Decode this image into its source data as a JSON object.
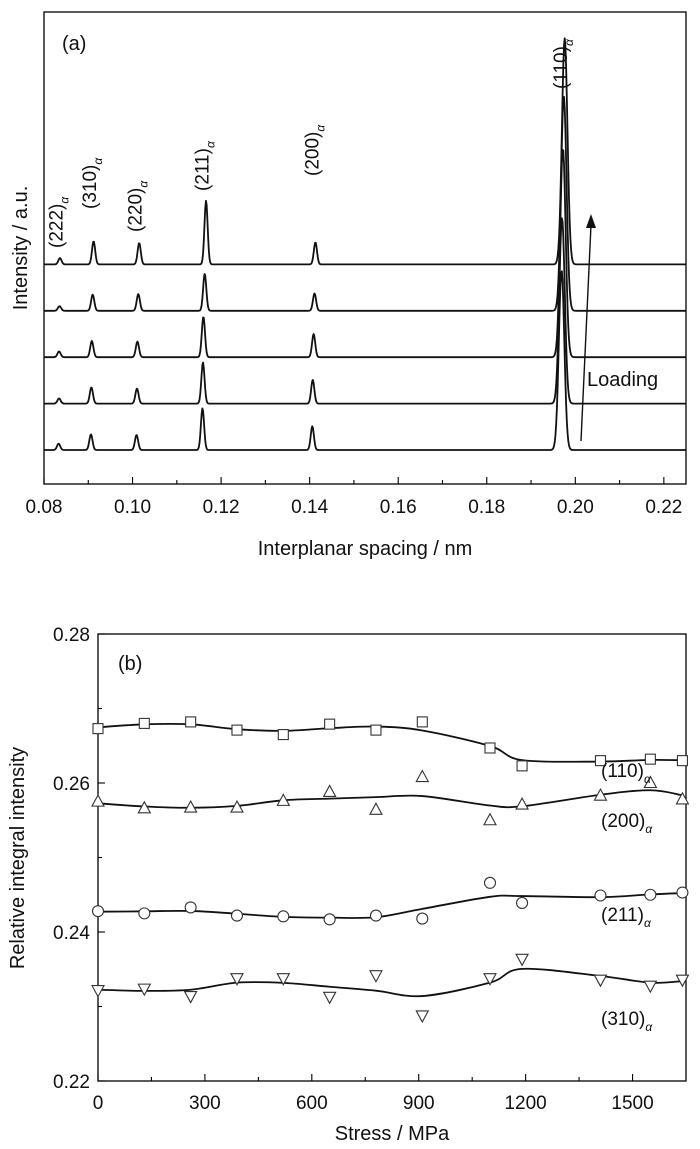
{
  "chart_data": [
    {
      "type": "line",
      "panel_label": "(a)",
      "xlabel": "Interplanar spacing / nm",
      "ylabel": "Intensity / a.u.",
      "xlim": [
        0.08,
        0.225
      ],
      "xticks": [
        "0.08",
        "0.10",
        "0.12",
        "0.14",
        "0.16",
        "0.18",
        "0.20",
        "0.22"
      ],
      "annotation": "Loading",
      "peaks": [
        {
          "label": "(222)",
          "subscript": "α",
          "d": 0.0833
        },
        {
          "label": "(310)",
          "subscript": "α",
          "d": 0.0908
        },
        {
          "label": "(220)",
          "subscript": "α",
          "d": 0.1011
        },
        {
          "label": "(211)",
          "subscript": "α",
          "d": 0.1163
        },
        {
          "label": "(200)",
          "subscript": "α",
          "d": 0.1411
        },
        {
          "label": "(110)",
          "subscript": "α",
          "d": 0.1972
        }
      ],
      "series": [
        {
          "name": "",
          "baseline": 0.0,
          "peak_d": [
            0.0833,
            0.0906,
            0.1009,
            0.1158,
            0.1406,
            0.1969
          ],
          "peak_h": [
            0.055,
            0.135,
            0.13,
            0.36,
            0.205,
            1.55
          ]
        },
        {
          "name": "",
          "baseline": 0.4,
          "peak_d": [
            0.0834,
            0.0907,
            0.101,
            0.1159,
            0.1407,
            0.197
          ],
          "peak_h": [
            0.045,
            0.14,
            0.13,
            0.355,
            0.205,
            1.6
          ]
        },
        {
          "name": "",
          "baseline": 0.8,
          "peak_d": [
            0.0834,
            0.0908,
            0.1011,
            0.116,
            0.1409,
            0.1972
          ],
          "peak_h": [
            0.05,
            0.14,
            0.135,
            0.35,
            0.2,
            1.8
          ]
        },
        {
          "name": "",
          "baseline": 1.2,
          "peak_d": [
            0.0835,
            0.091,
            0.1013,
            0.1163,
            0.1411,
            0.1974
          ],
          "peak_h": [
            0.04,
            0.14,
            0.145,
            0.32,
            0.15,
            1.85
          ]
        },
        {
          "name": "",
          "baseline": 1.6,
          "peak_d": [
            0.0836,
            0.0912,
            0.1015,
            0.1166,
            0.1413,
            0.1976
          ],
          "peak_h": [
            0.055,
            0.2,
            0.185,
            0.55,
            0.19,
            1.95
          ]
        }
      ]
    },
    {
      "type": "scatter",
      "panel_label": "(b)",
      "xlabel": "Stress / MPa",
      "ylabel": "Relative integral intensity",
      "xlim": [
        0,
        1650
      ],
      "ylim": [
        0.22,
        0.28
      ],
      "xticks": [
        "0",
        "300",
        "600",
        "900",
        "1200",
        "1500"
      ],
      "yticks": [
        "0.22",
        "0.24",
        "0.26",
        "0.28"
      ],
      "x": [
        0,
        130,
        260,
        390,
        520,
        650,
        780,
        910,
        1100,
        1190,
        1410,
        1550,
        1640
      ],
      "series": [
        {
          "name": "(110)",
          "subscript": "α",
          "marker": "square",
          "values": [
            0.2673,
            0.268,
            0.2682,
            0.2671,
            0.2665,
            0.2679,
            0.2671,
            0.2682,
            0.2647,
            0.2623,
            0.263,
            0.2632,
            0.263
          ]
        },
        {
          "name": "(200)",
          "subscript": "α",
          "marker": "triangle-up",
          "values": [
            0.2575,
            0.2566,
            0.2567,
            0.2567,
            0.2576,
            0.2588,
            0.2564,
            0.2608,
            0.255,
            0.2571,
            0.2583,
            0.26,
            0.2578
          ]
        },
        {
          "name": "(211)",
          "subscript": "α",
          "marker": "circle",
          "values": [
            0.2428,
            0.2425,
            0.2433,
            0.2422,
            0.2421,
            0.2417,
            0.2422,
            0.2418,
            0.2466,
            0.2439,
            0.2449,
            0.245,
            0.2453
          ]
        },
        {
          "name": "(310)",
          "subscript": "α",
          "marker": "triangle-down",
          "values": [
            0.2322,
            0.2324,
            0.2314,
            0.2338,
            0.2338,
            0.2313,
            0.2342,
            0.2288,
            0.2338,
            0.2364,
            0.2336,
            0.2328,
            0.2336
          ]
        }
      ]
    }
  ]
}
